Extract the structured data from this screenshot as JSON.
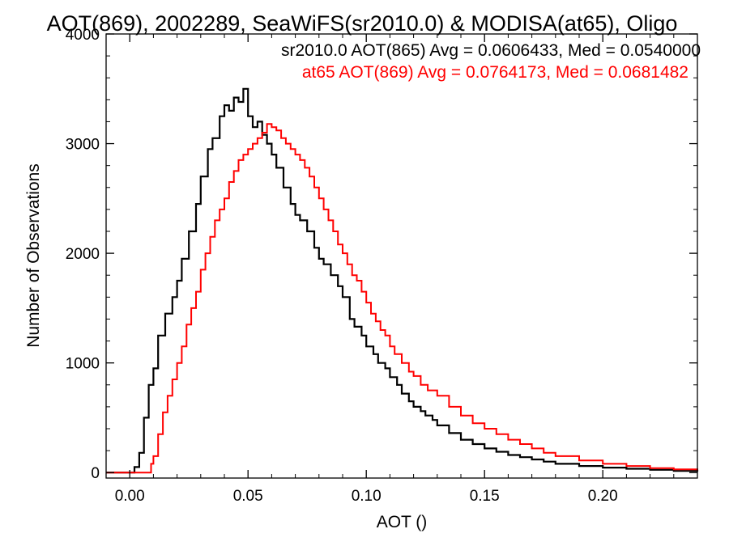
{
  "chart_data": {
    "type": "line",
    "title": "AOT(869), 2002289, SeaWiFS(sr2010.0) & MODISA(at65), Oligo",
    "xlabel": "AOT ()",
    "ylabel": "Number of Observations",
    "xlim": [
      -0.01,
      0.24
    ],
    "ylim": [
      -50,
      4000
    ],
    "xticks": [
      0.0,
      0.05,
      0.1,
      0.15,
      0.2
    ],
    "xtick_labels": [
      "0.00",
      "0.05",
      "0.10",
      "0.15",
      "0.20"
    ],
    "yticks": [
      0,
      1000,
      2000,
      3000,
      4000
    ],
    "ytick_labels": [
      "0",
      "1000",
      "2000",
      "3000",
      "4000"
    ],
    "grid": false,
    "legend_position": "top-right",
    "series": [
      {
        "name": "sr2010.0 AOT(865) Avg = 0.0606433, Med = 0.0540000",
        "color": "#000000",
        "points": [
          [
            -0.01,
            0
          ],
          [
            0.0,
            0
          ],
          [
            0.002,
            50
          ],
          [
            0.004,
            180
          ],
          [
            0.006,
            500
          ],
          [
            0.008,
            800
          ],
          [
            0.01,
            950
          ],
          [
            0.012,
            1250
          ],
          [
            0.015,
            1450
          ],
          [
            0.018,
            1600
          ],
          [
            0.02,
            1750
          ],
          [
            0.022,
            1950
          ],
          [
            0.025,
            2200
          ],
          [
            0.028,
            2450
          ],
          [
            0.03,
            2700
          ],
          [
            0.033,
            2950
          ],
          [
            0.035,
            3050
          ],
          [
            0.038,
            3250
          ],
          [
            0.04,
            3350
          ],
          [
            0.042,
            3300
          ],
          [
            0.044,
            3420
          ],
          [
            0.046,
            3380
          ],
          [
            0.048,
            3500
          ],
          [
            0.05,
            3250
          ],
          [
            0.052,
            3150
          ],
          [
            0.054,
            3200
          ],
          [
            0.056,
            3080
          ],
          [
            0.058,
            3000
          ],
          [
            0.06,
            2900
          ],
          [
            0.062,
            2780
          ],
          [
            0.065,
            2600
          ],
          [
            0.068,
            2450
          ],
          [
            0.07,
            2350
          ],
          [
            0.072,
            2300
          ],
          [
            0.075,
            2200
          ],
          [
            0.078,
            2050
          ],
          [
            0.08,
            1950
          ],
          [
            0.082,
            1900
          ],
          [
            0.085,
            1800
          ],
          [
            0.088,
            1700
          ],
          [
            0.09,
            1600
          ],
          [
            0.093,
            1400
          ],
          [
            0.095,
            1330
          ],
          [
            0.098,
            1250
          ],
          [
            0.1,
            1150
          ],
          [
            0.103,
            1080
          ],
          [
            0.105,
            1000
          ],
          [
            0.108,
            950
          ],
          [
            0.11,
            870
          ],
          [
            0.113,
            800
          ],
          [
            0.115,
            720
          ],
          [
            0.118,
            650
          ],
          [
            0.12,
            600
          ],
          [
            0.123,
            560
          ],
          [
            0.125,
            520
          ],
          [
            0.128,
            480
          ],
          [
            0.13,
            430
          ],
          [
            0.135,
            360
          ],
          [
            0.14,
            300
          ],
          [
            0.145,
            260
          ],
          [
            0.15,
            220
          ],
          [
            0.155,
            190
          ],
          [
            0.16,
            160
          ],
          [
            0.165,
            140
          ],
          [
            0.17,
            120
          ],
          [
            0.175,
            100
          ],
          [
            0.18,
            80
          ],
          [
            0.19,
            60
          ],
          [
            0.2,
            45
          ],
          [
            0.21,
            35
          ],
          [
            0.22,
            25
          ],
          [
            0.23,
            15
          ],
          [
            0.24,
            10
          ]
        ]
      },
      {
        "name": "at65 AOT(869) Avg = 0.0764173, Med = 0.0681482",
        "color": "#ff0000",
        "points": [
          [
            -0.01,
            0
          ],
          [
            0.008,
            0
          ],
          [
            0.009,
            80
          ],
          [
            0.01,
            150
          ],
          [
            0.012,
            350
          ],
          [
            0.014,
            550
          ],
          [
            0.016,
            700
          ],
          [
            0.018,
            850
          ],
          [
            0.02,
            1000
          ],
          [
            0.022,
            1150
          ],
          [
            0.024,
            1350
          ],
          [
            0.026,
            1500
          ],
          [
            0.028,
            1650
          ],
          [
            0.03,
            1850
          ],
          [
            0.032,
            2000
          ],
          [
            0.034,
            2150
          ],
          [
            0.036,
            2300
          ],
          [
            0.038,
            2400
          ],
          [
            0.04,
            2500
          ],
          [
            0.042,
            2650
          ],
          [
            0.044,
            2750
          ],
          [
            0.046,
            2850
          ],
          [
            0.048,
            2900
          ],
          [
            0.05,
            2950
          ],
          [
            0.052,
            3000
          ],
          [
            0.054,
            3050
          ],
          [
            0.056,
            3100
          ],
          [
            0.058,
            3180
          ],
          [
            0.06,
            3150
          ],
          [
            0.062,
            3120
          ],
          [
            0.064,
            3050
          ],
          [
            0.066,
            3000
          ],
          [
            0.068,
            2950
          ],
          [
            0.07,
            2900
          ],
          [
            0.072,
            2850
          ],
          [
            0.074,
            2780
          ],
          [
            0.076,
            2700
          ],
          [
            0.078,
            2600
          ],
          [
            0.08,
            2500
          ],
          [
            0.082,
            2400
          ],
          [
            0.084,
            2300
          ],
          [
            0.086,
            2200
          ],
          [
            0.088,
            2080
          ],
          [
            0.09,
            2000
          ],
          [
            0.092,
            1900
          ],
          [
            0.094,
            1800
          ],
          [
            0.096,
            1750
          ],
          [
            0.098,
            1650
          ],
          [
            0.1,
            1550
          ],
          [
            0.102,
            1450
          ],
          [
            0.104,
            1380
          ],
          [
            0.106,
            1300
          ],
          [
            0.108,
            1250
          ],
          [
            0.11,
            1150
          ],
          [
            0.112,
            1080
          ],
          [
            0.115,
            1000
          ],
          [
            0.118,
            920
          ],
          [
            0.12,
            880
          ],
          [
            0.123,
            800
          ],
          [
            0.126,
            750
          ],
          [
            0.13,
            700
          ],
          [
            0.135,
            600
          ],
          [
            0.14,
            520
          ],
          [
            0.145,
            450
          ],
          [
            0.15,
            400
          ],
          [
            0.155,
            350
          ],
          [
            0.16,
            300
          ],
          [
            0.165,
            260
          ],
          [
            0.17,
            220
          ],
          [
            0.175,
            180
          ],
          [
            0.18,
            150
          ],
          [
            0.19,
            110
          ],
          [
            0.2,
            80
          ],
          [
            0.21,
            60
          ],
          [
            0.22,
            40
          ],
          [
            0.23,
            30
          ],
          [
            0.24,
            20
          ]
        ]
      }
    ]
  }
}
